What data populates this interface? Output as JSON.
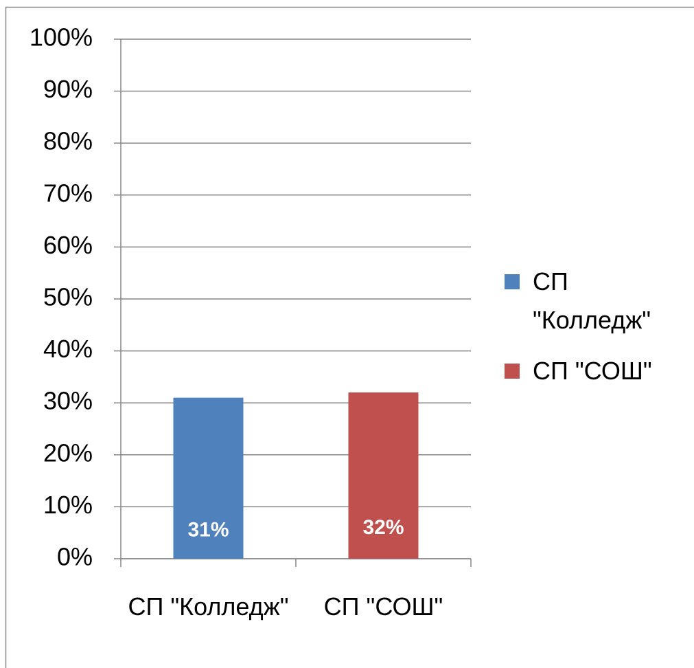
{
  "chart_data": {
    "type": "bar",
    "categories": [
      "СП \"Колледж\"",
      "СП \"СОШ\""
    ],
    "values": [
      31,
      32
    ],
    "value_labels": [
      "31%",
      "32%"
    ],
    "colors": [
      "#4f81bd",
      "#c0504d"
    ],
    "ylim": [
      0,
      100
    ],
    "yticks": [
      {
        "value": 0,
        "label": "0%"
      },
      {
        "value": 10,
        "label": "10%"
      },
      {
        "value": 20,
        "label": "20%"
      },
      {
        "value": 30,
        "label": "30%"
      },
      {
        "value": 40,
        "label": "40%"
      },
      {
        "value": 50,
        "label": "50%"
      },
      {
        "value": 60,
        "label": "60%"
      },
      {
        "value": 70,
        "label": "70%"
      },
      {
        "value": 80,
        "label": "80%"
      },
      {
        "value": 90,
        "label": "90%"
      },
      {
        "value": 100,
        "label": "100%"
      }
    ],
    "grid": true,
    "legend": "right"
  }
}
